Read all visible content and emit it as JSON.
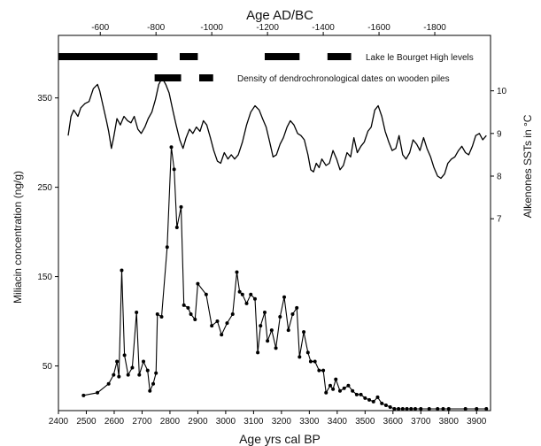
{
  "chart_data": {
    "type": "line",
    "top_axis": {
      "label": "Age AD/BC",
      "ticks": [
        {
          "bp": 2550,
          "label": "-600"
        },
        {
          "bp": 2750,
          "label": "-800"
        },
        {
          "bp": 2950,
          "label": "-1000"
        },
        {
          "bp": 3150,
          "label": "-1200"
        },
        {
          "bp": 3350,
          "label": "-1400"
        },
        {
          "bp": 3550,
          "label": "-1600"
        },
        {
          "bp": 3750,
          "label": "-1800"
        }
      ]
    },
    "x_axis": {
      "label": "Age yrs cal BP",
      "range": [
        2400,
        3950
      ],
      "ticks": [
        2400,
        2500,
        2600,
        2700,
        2800,
        2900,
        3000,
        3100,
        3200,
        3300,
        3400,
        3500,
        3600,
        3700,
        3800,
        3900
      ]
    },
    "y_left": {
      "label": "Miliacin concentration (ng/g)",
      "range": [
        0,
        420
      ],
      "ticks": [
        50,
        150,
        250,
        350
      ]
    },
    "y_right": {
      "label": "Alkenones SSTs in °C",
      "range": [
        2.5,
        11.3
      ],
      "ticks": [
        7,
        8,
        9,
        10
      ]
    },
    "bars": [
      {
        "label": "Lake le Bourget High levels",
        "segments": [
          [
            2400,
            2755
          ],
          [
            2835,
            2900
          ],
          [
            3140,
            3265
          ],
          [
            3365,
            3450
          ]
        ]
      },
      {
        "label": "Density of dendrochronological dates on wooden piles",
        "segments": [
          [
            2745,
            2840
          ],
          [
            2905,
            2955
          ]
        ]
      }
    ],
    "series": [
      {
        "name": "",
        "axis": "right",
        "markers": false,
        "points": [
          [
            2435,
            8.95
          ],
          [
            2445,
            9.4
          ],
          [
            2455,
            9.55
          ],
          [
            2470,
            9.4
          ],
          [
            2480,
            9.6
          ],
          [
            2495,
            9.7
          ],
          [
            2510,
            9.75
          ],
          [
            2525,
            10.05
          ],
          [
            2540,
            10.15
          ],
          [
            2548,
            10.0
          ],
          [
            2560,
            9.65
          ],
          [
            2572,
            9.3
          ],
          [
            2580,
            9.05
          ],
          [
            2590,
            8.65
          ],
          [
            2598,
            8.9
          ],
          [
            2610,
            9.35
          ],
          [
            2622,
            9.2
          ],
          [
            2635,
            9.4
          ],
          [
            2648,
            9.3
          ],
          [
            2660,
            9.25
          ],
          [
            2672,
            9.4
          ],
          [
            2685,
            9.1
          ],
          [
            2697,
            9.0
          ],
          [
            2710,
            9.15
          ],
          [
            2722,
            9.35
          ],
          [
            2735,
            9.5
          ],
          [
            2748,
            9.8
          ],
          [
            2760,
            10.15
          ],
          [
            2772,
            10.3
          ],
          [
            2785,
            10.15
          ],
          [
            2797,
            9.95
          ],
          [
            2810,
            9.55
          ],
          [
            2822,
            9.2
          ],
          [
            2835,
            8.85
          ],
          [
            2847,
            8.65
          ],
          [
            2858,
            8.9
          ],
          [
            2870,
            9.1
          ],
          [
            2882,
            9.0
          ],
          [
            2895,
            9.15
          ],
          [
            2908,
            9.05
          ],
          [
            2920,
            9.3
          ],
          [
            2932,
            9.2
          ],
          [
            2945,
            8.9
          ],
          [
            2957,
            8.6
          ],
          [
            2970,
            8.35
          ],
          [
            2982,
            8.3
          ],
          [
            2995,
            8.55
          ],
          [
            3008,
            8.4
          ],
          [
            3020,
            8.5
          ],
          [
            3032,
            8.4
          ],
          [
            3045,
            8.5
          ],
          [
            3060,
            8.8
          ],
          [
            3075,
            9.2
          ],
          [
            3090,
            9.5
          ],
          [
            3105,
            9.65
          ],
          [
            3120,
            9.55
          ],
          [
            3132,
            9.35
          ],
          [
            3145,
            9.15
          ],
          [
            3158,
            8.8
          ],
          [
            3170,
            8.45
          ],
          [
            3182,
            8.5
          ],
          [
            3195,
            8.75
          ],
          [
            3207,
            8.9
          ],
          [
            3220,
            9.15
          ],
          [
            3232,
            9.3
          ],
          [
            3245,
            9.2
          ],
          [
            3258,
            9.0
          ],
          [
            3270,
            8.95
          ],
          [
            3282,
            8.85
          ],
          [
            3295,
            8.5
          ],
          [
            3305,
            8.15
          ],
          [
            3315,
            8.1
          ],
          [
            3325,
            8.3
          ],
          [
            3335,
            8.2
          ],
          [
            3345,
            8.4
          ],
          [
            3360,
            8.25
          ],
          [
            3372,
            8.3
          ],
          [
            3385,
            8.6
          ],
          [
            3398,
            8.4
          ],
          [
            3410,
            8.15
          ],
          [
            3422,
            8.25
          ],
          [
            3435,
            8.55
          ],
          [
            3448,
            8.45
          ],
          [
            3460,
            8.9
          ],
          [
            3472,
            8.55
          ],
          [
            3485,
            8.7
          ],
          [
            3497,
            8.8
          ],
          [
            3510,
            9.05
          ],
          [
            3522,
            9.15
          ],
          [
            3535,
            9.55
          ],
          [
            3547,
            9.65
          ],
          [
            3560,
            9.4
          ],
          [
            3572,
            9.05
          ],
          [
            3585,
            8.8
          ],
          [
            3597,
            8.6
          ],
          [
            3610,
            8.65
          ],
          [
            3622,
            8.95
          ],
          [
            3635,
            8.5
          ],
          [
            3647,
            8.4
          ],
          [
            3660,
            8.55
          ],
          [
            3672,
            8.85
          ],
          [
            3685,
            8.75
          ],
          [
            3697,
            8.6
          ],
          [
            3710,
            8.9
          ],
          [
            3722,
            8.65
          ],
          [
            3735,
            8.45
          ],
          [
            3747,
            8.2
          ],
          [
            3760,
            8.0
          ],
          [
            3772,
            7.95
          ],
          [
            3785,
            8.05
          ],
          [
            3797,
            8.3
          ],
          [
            3810,
            8.4
          ],
          [
            3822,
            8.45
          ],
          [
            3835,
            8.6
          ],
          [
            3847,
            8.7
          ],
          [
            3860,
            8.55
          ],
          [
            3872,
            8.5
          ],
          [
            3885,
            8.7
          ],
          [
            3897,
            8.95
          ],
          [
            3910,
            9.0
          ],
          [
            3922,
            8.85
          ],
          [
            3935,
            8.95
          ]
        ]
      },
      {
        "name": "",
        "axis": "left",
        "markers": true,
        "points": [
          [
            2490,
            17
          ],
          [
            2540,
            20
          ],
          [
            2580,
            30
          ],
          [
            2598,
            40
          ],
          [
            2610,
            55
          ],
          [
            2617,
            38
          ],
          [
            2627,
            157
          ],
          [
            2637,
            62
          ],
          [
            2650,
            40
          ],
          [
            2665,
            48
          ],
          [
            2680,
            110
          ],
          [
            2690,
            40
          ],
          [
            2705,
            55
          ],
          [
            2720,
            45
          ],
          [
            2728,
            22
          ],
          [
            2740,
            30
          ],
          [
            2750,
            42
          ],
          [
            2755,
            108
          ],
          [
            2770,
            105
          ],
          [
            2790,
            183
          ],
          [
            2805,
            295
          ],
          [
            2815,
            270
          ],
          [
            2825,
            205
          ],
          [
            2840,
            228
          ],
          [
            2850,
            118
          ],
          [
            2865,
            115
          ],
          [
            2875,
            108
          ],
          [
            2890,
            102
          ],
          [
            2900,
            142
          ],
          [
            2930,
            130
          ],
          [
            2950,
            95
          ],
          [
            2970,
            100
          ],
          [
            2985,
            85
          ],
          [
            3005,
            98
          ],
          [
            3025,
            108
          ],
          [
            3040,
            155
          ],
          [
            3050,
            133
          ],
          [
            3060,
            130
          ],
          [
            3075,
            120
          ],
          [
            3090,
            130
          ],
          [
            3105,
            125
          ],
          [
            3115,
            65
          ],
          [
            3125,
            95
          ],
          [
            3140,
            110
          ],
          [
            3150,
            78
          ],
          [
            3165,
            90
          ],
          [
            3180,
            70
          ],
          [
            3195,
            105
          ],
          [
            3210,
            127
          ],
          [
            3225,
            90
          ],
          [
            3240,
            108
          ],
          [
            3255,
            115
          ],
          [
            3265,
            60
          ],
          [
            3280,
            88
          ],
          [
            3295,
            65
          ],
          [
            3305,
            55
          ],
          [
            3320,
            55
          ],
          [
            3335,
            45
          ],
          [
            3350,
            45
          ],
          [
            3360,
            20
          ],
          [
            3375,
            28
          ],
          [
            3385,
            24
          ],
          [
            3395,
            35
          ],
          [
            3410,
            22
          ],
          [
            3425,
            25
          ],
          [
            3440,
            28
          ],
          [
            3455,
            22
          ],
          [
            3470,
            18
          ],
          [
            3485,
            18
          ],
          [
            3500,
            14
          ],
          [
            3515,
            12
          ],
          [
            3530,
            10
          ],
          [
            3545,
            15
          ],
          [
            3560,
            8
          ],
          [
            3575,
            6
          ],
          [
            3590,
            4
          ],
          [
            3605,
            2
          ],
          [
            3620,
            2
          ],
          [
            3635,
            2
          ],
          [
            3650,
            2
          ],
          [
            3665,
            2
          ],
          [
            3680,
            2
          ],
          [
            3700,
            2
          ],
          [
            3730,
            2
          ],
          [
            3760,
            2
          ],
          [
            3780,
            2
          ],
          [
            3800,
            2
          ],
          [
            3860,
            2
          ],
          [
            3900,
            2
          ],
          [
            3935,
            2
          ]
        ]
      }
    ]
  }
}
